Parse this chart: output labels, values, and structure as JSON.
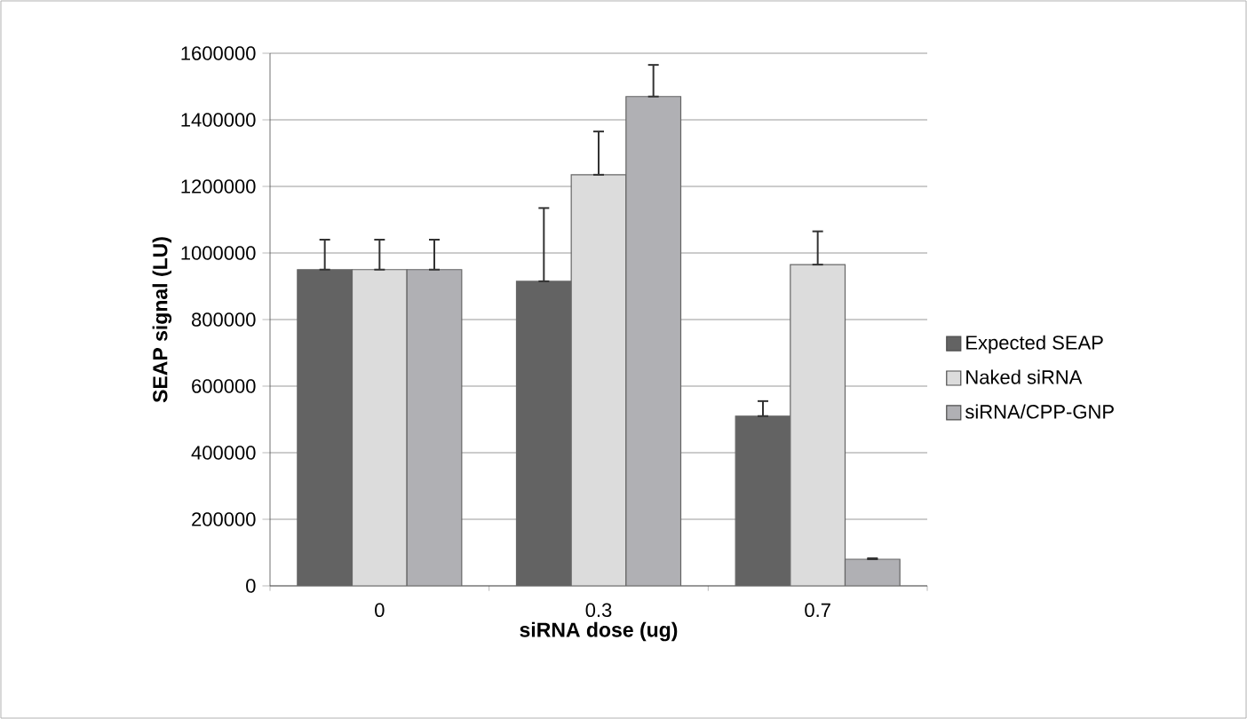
{
  "chart_data": {
    "type": "bar",
    "xlabel": "siRNA dose (ug)",
    "ylabel": "SEAP signal (LU)",
    "categories": [
      "0",
      "0.3",
      "0.7"
    ],
    "series": [
      {
        "name": "Expected SEAP",
        "color": "#636363",
        "values": [
          950000,
          915000,
          510000
        ],
        "errors": [
          [
            950000,
            1040000
          ],
          [
            915000,
            1135000
          ],
          [
            510000,
            555000
          ]
        ]
      },
      {
        "name": "Naked siRNA",
        "color": "#dcdcdc",
        "values": [
          950000,
          1235000,
          965000
        ],
        "errors": [
          [
            950000,
            1040000
          ],
          [
            1235000,
            1365000
          ],
          [
            965000,
            1065000
          ]
        ]
      },
      {
        "name": "siRNA/CPP-GNP",
        "color": "#b0b0b4",
        "values": [
          950000,
          1470000,
          80000
        ],
        "errors": [
          [
            950000,
            1040000
          ],
          [
            1470000,
            1565000
          ],
          [
            80000,
            83000
          ]
        ]
      }
    ],
    "ylim": [
      0,
      1600000
    ],
    "yticks": [
      0,
      200000,
      400000,
      600000,
      800000,
      1000000,
      1200000,
      1400000,
      1600000
    ],
    "grid": "y",
    "legend": "right"
  }
}
